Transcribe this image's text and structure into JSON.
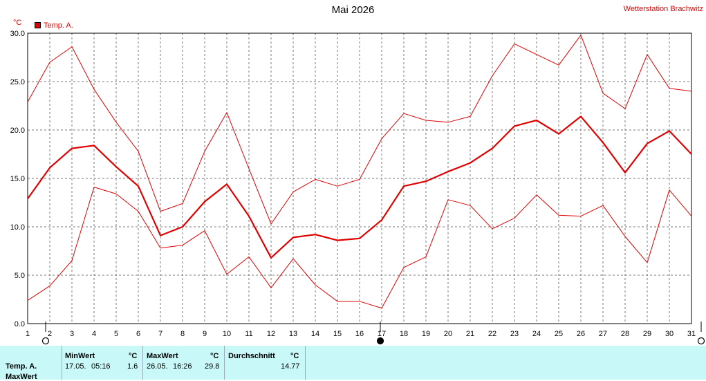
{
  "header": {
    "title": "Mai 2026",
    "station": "Wetterstation Brachwitz",
    "legend_label": "Temp. A.",
    "unit": "°C"
  },
  "colors": {
    "series": "#e00000",
    "grid": "#7a7a7a",
    "panel": "#c8f8f8"
  },
  "chart_data": {
    "type": "line",
    "title": "Mai 2026",
    "ylabel": "°C",
    "ylim": [
      0,
      30
    ],
    "xlim": [
      1,
      31
    ],
    "grid": true,
    "legend": "top-left",
    "yticks": [
      "0.0",
      "5.0",
      "10.0",
      "15.0",
      "20.0",
      "25.0",
      "30.0"
    ],
    "x": [
      1,
      2,
      3,
      4,
      5,
      6,
      7,
      8,
      9,
      10,
      11,
      12,
      13,
      14,
      15,
      16,
      17,
      18,
      19,
      20,
      21,
      22,
      23,
      24,
      25,
      26,
      27,
      28,
      29,
      30,
      31
    ],
    "series": [
      {
        "name": "Temp. A.",
        "role": "mean",
        "values": [
          12.9,
          16.1,
          18.1,
          18.4,
          16.2,
          14.2,
          9.1,
          10.0,
          12.6,
          14.4,
          11.1,
          6.8,
          8.9,
          9.2,
          8.6,
          8.8,
          10.7,
          14.2,
          14.7,
          15.7,
          16.6,
          18.1,
          20.4,
          21.0,
          19.6,
          21.4,
          18.7,
          15.6,
          18.6,
          19.9,
          17.5
        ]
      },
      {
        "role": "max",
        "values": [
          22.9,
          27.0,
          28.6,
          24.2,
          20.8,
          17.8,
          11.6,
          12.4,
          17.8,
          21.8,
          16.0,
          10.3,
          13.6,
          14.9,
          14.2,
          14.9,
          19.1,
          21.7,
          21.0,
          20.8,
          21.4,
          25.6,
          28.9,
          27.8,
          26.7,
          29.8,
          23.8,
          22.2,
          27.8,
          24.3,
          24.0
        ]
      },
      {
        "role": "min",
        "values": [
          2.4,
          3.9,
          6.5,
          14.1,
          13.4,
          11.6,
          7.8,
          8.1,
          9.6,
          5.1,
          6.9,
          3.7,
          6.7,
          4.0,
          2.3,
          2.3,
          1.6,
          5.8,
          6.9,
          12.8,
          12.2,
          9.8,
          10.9,
          13.3,
          11.2,
          11.1,
          12.2,
          9.0,
          6.3,
          13.8,
          11.1
        ]
      }
    ],
    "markers": [
      {
        "day": 1,
        "style": "open"
      },
      {
        "day": 17,
        "style": "filled"
      },
      {
        "day": 31,
        "style": "open"
      }
    ]
  },
  "stats": {
    "row_label": "Temp. A.",
    "row_label2": "MaxWert",
    "min": {
      "header": "MinWert",
      "unit": "°C",
      "date": "17.05.",
      "time": "05:16",
      "value": "1.6"
    },
    "max": {
      "header": "MaxWert",
      "unit": "°C",
      "date": "26.05.",
      "time": "16:26",
      "value": "29.8"
    },
    "avg": {
      "header": "Durchschnitt",
      "unit": "°C",
      "value": "14.77"
    }
  }
}
